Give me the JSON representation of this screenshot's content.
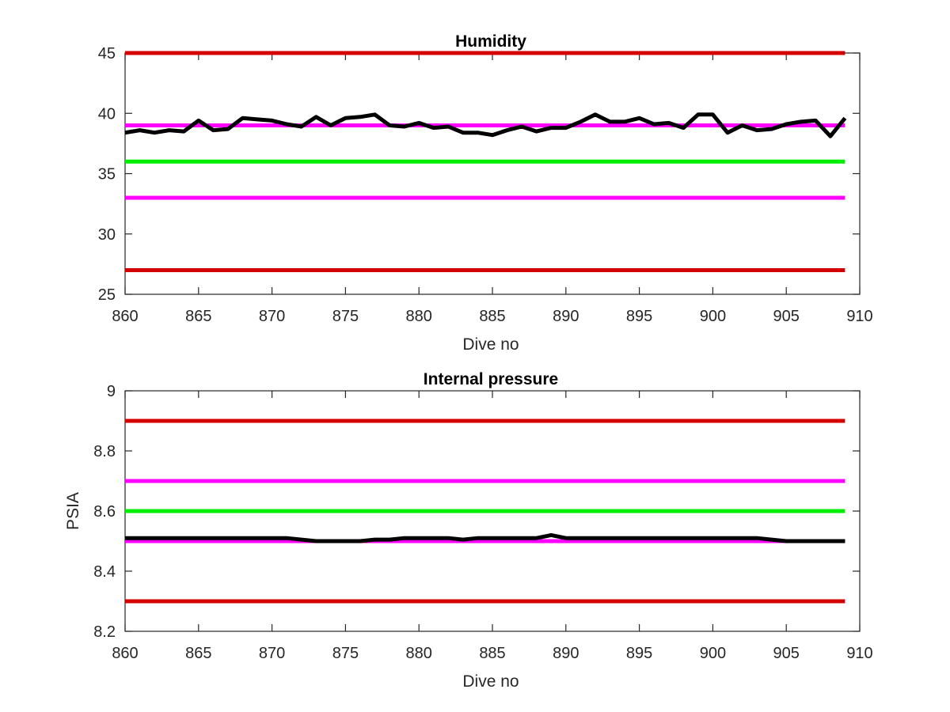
{
  "chart_data": [
    {
      "type": "line",
      "title": "Humidity",
      "xlabel": "Dive no",
      "ylabel": "",
      "xlim": [
        860,
        910
      ],
      "ylim": [
        25,
        45
      ],
      "xticks": [
        "860",
        "865",
        "870",
        "875",
        "880",
        "885",
        "890",
        "895",
        "900",
        "905",
        "910"
      ],
      "yticks": [
        "25",
        "30",
        "35",
        "40",
        "45"
      ],
      "grid": false,
      "series": [
        {
          "color": "#000000",
          "x": [
            860,
            861,
            862,
            863,
            864,
            865,
            866,
            867,
            868,
            869,
            870,
            871,
            872,
            873,
            874,
            875,
            876,
            877,
            878,
            879,
            880,
            881,
            882,
            883,
            884,
            885,
            886,
            887,
            888,
            889,
            890,
            891,
            892,
            893,
            894,
            895,
            896,
            897,
            898,
            899,
            900,
            901,
            902,
            903,
            904,
            905,
            906,
            907,
            908,
            909
          ],
          "y": [
            38.4,
            38.6,
            38.4,
            38.6,
            38.5,
            39.4,
            38.6,
            38.7,
            39.6,
            39.5,
            39.4,
            39.1,
            38.9,
            39.7,
            39.0,
            39.6,
            39.7,
            39.9,
            39.0,
            38.9,
            39.2,
            38.8,
            38.9,
            38.4,
            38.4,
            38.2,
            38.6,
            38.9,
            38.5,
            38.8,
            38.8,
            39.3,
            39.9,
            39.3,
            39.3,
            39.6,
            39.1,
            39.2,
            38.8,
            39.9,
            39.9,
            38.4,
            39.0,
            38.6,
            38.7,
            39.1,
            39.3,
            39.4,
            38.1,
            39.6
          ]
        },
        {
          "color": "#d40000",
          "x": [
            860,
            909
          ],
          "y": [
            45,
            45
          ]
        },
        {
          "color": "#ff00ff",
          "x": [
            860,
            909
          ],
          "y": [
            39,
            39
          ]
        },
        {
          "color": "#00ee00",
          "x": [
            860,
            909
          ],
          "y": [
            36,
            36
          ]
        },
        {
          "color": "#ff00ff",
          "x": [
            860,
            909
          ],
          "y": [
            33,
            33
          ]
        },
        {
          "color": "#d40000",
          "x": [
            860,
            909
          ],
          "y": [
            27,
            27
          ]
        }
      ]
    },
    {
      "type": "line",
      "title": "Internal pressure",
      "xlabel": "Dive no",
      "ylabel": "PSIA",
      "xlim": [
        860,
        910
      ],
      "ylim": [
        8.2,
        9
      ],
      "xticks": [
        "860",
        "865",
        "870",
        "875",
        "880",
        "885",
        "890",
        "895",
        "900",
        "905",
        "910"
      ],
      "yticks": [
        "8.2",
        "8.4",
        "8.6",
        "8.8",
        "9"
      ],
      "grid": false,
      "series": [
        {
          "color": "#000000",
          "x": [
            860,
            861,
            862,
            863,
            864,
            865,
            866,
            867,
            868,
            869,
            870,
            871,
            872,
            873,
            874,
            875,
            876,
            877,
            878,
            879,
            880,
            881,
            882,
            883,
            884,
            885,
            886,
            887,
            888,
            889,
            890,
            891,
            892,
            893,
            894,
            895,
            896,
            897,
            898,
            899,
            900,
            901,
            902,
            903,
            904,
            905,
            906,
            907,
            908,
            909
          ],
          "y": [
            8.51,
            8.51,
            8.51,
            8.51,
            8.51,
            8.51,
            8.51,
            8.51,
            8.51,
            8.51,
            8.51,
            8.51,
            8.505,
            8.5,
            8.5,
            8.5,
            8.5,
            8.505,
            8.505,
            8.51,
            8.51,
            8.51,
            8.51,
            8.505,
            8.51,
            8.51,
            8.51,
            8.51,
            8.51,
            8.52,
            8.51,
            8.51,
            8.51,
            8.51,
            8.51,
            8.51,
            8.51,
            8.51,
            8.51,
            8.51,
            8.51,
            8.51,
            8.51,
            8.51,
            8.505,
            8.5,
            8.5,
            8.5,
            8.5,
            8.5
          ]
        },
        {
          "color": "#d40000",
          "x": [
            860,
            909
          ],
          "y": [
            8.9,
            8.9
          ]
        },
        {
          "color": "#ff00ff",
          "x": [
            860,
            909
          ],
          "y": [
            8.7,
            8.7
          ]
        },
        {
          "color": "#00ee00",
          "x": [
            860,
            909
          ],
          "y": [
            8.6,
            8.6
          ]
        },
        {
          "color": "#ff00ff",
          "x": [
            860,
            909
          ],
          "y": [
            8.5,
            8.5
          ]
        },
        {
          "color": "#d40000",
          "x": [
            860,
            909
          ],
          "y": [
            8.3,
            8.3
          ]
        }
      ]
    }
  ]
}
